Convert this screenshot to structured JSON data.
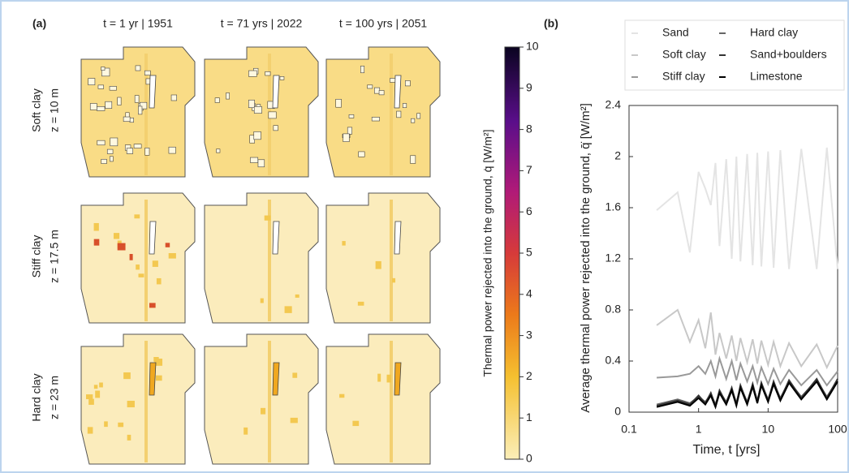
{
  "panel_a": {
    "label": "(a)",
    "columns": [
      "t = 1 yr | 1951",
      "t = 71 yrs | 2022",
      "t = 100 yrs | 2051"
    ],
    "rows": [
      {
        "material": "Soft clay",
        "depth": "z = 10 m"
      },
      {
        "material": "Stiff clay",
        "depth": "z = 17.5 m"
      },
      {
        "material": "Hard clay",
        "depth": "z = 23 m"
      }
    ],
    "colorbar": {
      "label": "Thermal power rejected into the ground, q̇ [W/m²]",
      "lim": [
        0,
        10
      ],
      "ticks": [
        0,
        1,
        2,
        3,
        4,
        5,
        6,
        7,
        8,
        9,
        10
      ]
    }
  },
  "chart_data": {
    "type": "line",
    "panel_label": "(b)",
    "x_label": "Time, t [yrs]",
    "y_label": "Average thermal power rejected into the ground, q̄̇ [W/m²]",
    "xscale": "log",
    "xlim": [
      0.1,
      100
    ],
    "xticks": [
      0.1,
      1,
      10,
      100
    ],
    "ylim": [
      0,
      2.4
    ],
    "yticks": [
      0,
      0.4,
      0.8,
      1.2,
      1.6,
      2,
      2.4
    ],
    "x": [
      0.25,
      0.5,
      0.75,
      1,
      1.25,
      1.5,
      1.75,
      2,
      2.5,
      3,
      3.5,
      4,
      5,
      6,
      7,
      8,
      10,
      12,
      15,
      20,
      30,
      50,
      70,
      100
    ],
    "series": [
      {
        "name": "Sand",
        "color": "#e4e4e4",
        "values": [
          1.58,
          1.72,
          1.25,
          1.88,
          1.75,
          1.62,
          1.95,
          1.3,
          1.98,
          1.2,
          2.0,
          1.18,
          2.02,
          1.15,
          2.03,
          1.14,
          2.04,
          1.13,
          2.05,
          1.12,
          2.06,
          1.12,
          2.07,
          1.12
        ]
      },
      {
        "name": "Soft clay",
        "color": "#c8c8c8",
        "values": [
          0.68,
          0.8,
          0.55,
          0.72,
          0.5,
          0.78,
          0.45,
          0.62,
          0.42,
          0.6,
          0.4,
          0.58,
          0.39,
          0.57,
          0.38,
          0.56,
          0.37,
          0.55,
          0.36,
          0.54,
          0.36,
          0.53,
          0.35,
          0.52
        ]
      },
      {
        "name": "Stiff clay",
        "color": "#999999",
        "values": [
          0.27,
          0.28,
          0.3,
          0.36,
          0.3,
          0.4,
          0.28,
          0.42,
          0.26,
          0.4,
          0.25,
          0.38,
          0.24,
          0.36,
          0.23,
          0.35,
          0.22,
          0.34,
          0.22,
          0.33,
          0.21,
          0.33,
          0.21,
          0.32
        ]
      },
      {
        "name": "Hard clay",
        "color": "#666666",
        "values": [
          0.06,
          0.1,
          0.07,
          0.12,
          0.08,
          0.14,
          0.06,
          0.16,
          0.08,
          0.18,
          0.07,
          0.2,
          0.08,
          0.21,
          0.09,
          0.22,
          0.1,
          0.23,
          0.11,
          0.24,
          0.12,
          0.25,
          0.12,
          0.25
        ]
      },
      {
        "name": "Sand+boulders",
        "color": "#333333",
        "values": [
          0.05,
          0.09,
          0.06,
          0.13,
          0.07,
          0.15,
          0.05,
          0.17,
          0.07,
          0.19,
          0.06,
          0.21,
          0.07,
          0.22,
          0.08,
          0.23,
          0.09,
          0.24,
          0.1,
          0.25,
          0.11,
          0.26,
          0.11,
          0.26
        ]
      },
      {
        "name": "Limestone",
        "color": "#000000",
        "values": [
          0.04,
          0.08,
          0.05,
          0.11,
          0.06,
          0.13,
          0.04,
          0.15,
          0.06,
          0.17,
          0.05,
          0.19,
          0.06,
          0.2,
          0.07,
          0.21,
          0.08,
          0.22,
          0.09,
          0.23,
          0.1,
          0.24,
          0.1,
          0.24
        ]
      }
    ]
  }
}
